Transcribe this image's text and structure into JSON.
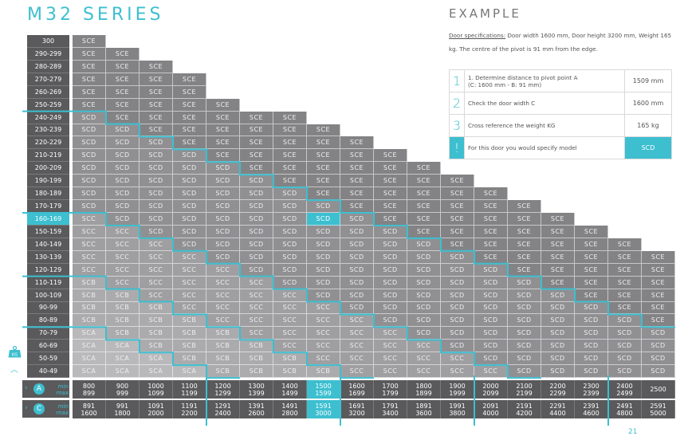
{
  "title": "M32 SERIES",
  "example": {
    "title": "EXAMPLE",
    "spec_label": "Door specifications:",
    "spec_text": " Door width 1600 mm, Door height 3200 mm, Weight 165 kg. The centre of the pivot is 91 mm from the edge.",
    "steps": [
      {
        "num": "1",
        "text": "1. Determine distance to pivot point A",
        "subtext": "(C: 1600 mm - B: 91 mm)",
        "value": "1509 mm"
      },
      {
        "num": "2",
        "text": "Check the door width C",
        "subtext": "",
        "value": "1600 mm"
      },
      {
        "num": "3",
        "text": "Cross reference the weight KG",
        "subtext": "",
        "value": "165 kg"
      },
      {
        "num": "!",
        "text": "For this door you would specify model",
        "subtext": "",
        "value": "SCD"
      }
    ]
  },
  "weight_unit": "KG",
  "weights": [
    "300",
    "290-299",
    "280-289",
    "270-279",
    "260-269",
    "250-259",
    "240-249",
    "230-239",
    "220-229",
    "210-219",
    "200-209",
    "190-199",
    "180-189",
    "170-179",
    "160-169",
    "150-159",
    "140-149",
    "130-139",
    "120-129",
    "110-119",
    "100-109",
    "90-99",
    "80-89",
    "70-79",
    "60-69",
    "50-59",
    "40-49"
  ],
  "highlight_weight_index": 14,
  "highlight_col_index": 7,
  "labels": {
    "min": "min",
    "max": "max",
    "a": "A",
    "c": "C"
  },
  "a_ranges": [
    {
      "min": "800",
      "max": "899"
    },
    {
      "min": "900",
      "max": "999"
    },
    {
      "min": "1000",
      "max": "1099"
    },
    {
      "min": "1100",
      "max": "1199"
    },
    {
      "min": "1200",
      "max": "1299"
    },
    {
      "min": "1300",
      "max": "1399"
    },
    {
      "min": "1400",
      "max": "1499"
    },
    {
      "min": "1500",
      "max": "1599"
    },
    {
      "min": "1600",
      "max": "1699"
    },
    {
      "min": "1700",
      "max": "1799"
    },
    {
      "min": "1800",
      "max": "1899"
    },
    {
      "min": "1900",
      "max": "1999"
    },
    {
      "min": "2000",
      "max": "2099"
    },
    {
      "min": "2100",
      "max": "2199"
    },
    {
      "min": "2200",
      "max": "2299"
    },
    {
      "min": "2300",
      "max": "2399"
    },
    {
      "min": "2400",
      "max": "2499"
    },
    {
      "min": "2500",
      "max": ""
    }
  ],
  "c_ranges": [
    {
      "min": "891",
      "max": "1600"
    },
    {
      "min": "991",
      "max": "1800"
    },
    {
      "min": "1091",
      "max": "2000"
    },
    {
      "min": "1191",
      "max": "2200"
    },
    {
      "min": "1291",
      "max": "2400"
    },
    {
      "min": "1391",
      "max": "2600"
    },
    {
      "min": "1491",
      "max": "2800"
    },
    {
      "min": "1591",
      "max": "3000"
    },
    {
      "min": "1691",
      "max": "3200"
    },
    {
      "min": "1791",
      "max": "3400"
    },
    {
      "min": "1891",
      "max": "3600"
    },
    {
      "min": "1991",
      "max": "3800"
    },
    {
      "min": "2091",
      "max": "4000"
    },
    {
      "min": "2191",
      "max": "4200"
    },
    {
      "min": "2291",
      "max": "4400"
    },
    {
      "min": "2391",
      "max": "4600"
    },
    {
      "min": "2491",
      "max": "4800"
    },
    {
      "min": "2591",
      "max": "5000"
    }
  ],
  "grid": [
    [
      "SCE"
    ],
    [
      "SCE",
      "SCE"
    ],
    [
      "SCE",
      "SCE",
      "SCE"
    ],
    [
      "SCE",
      "SCE",
      "SCE",
      "SCE"
    ],
    [
      "SCE",
      "SCE",
      "SCE",
      "SCE"
    ],
    [
      "SCE",
      "SCE",
      "SCE",
      "SCE",
      "SCE"
    ],
    [
      "SCD",
      "SCE",
      "SCE",
      "SCE",
      "SCE",
      "SCE",
      "SCE"
    ],
    [
      "SCD",
      "SCD",
      "SCE",
      "SCE",
      "SCE",
      "SCE",
      "SCE",
      "SCE"
    ],
    [
      "SCD",
      "SCD",
      "SCD",
      "SCE",
      "SCE",
      "SCE",
      "SCE",
      "SCE",
      "SCE"
    ],
    [
      "SCD",
      "SCD",
      "SCD",
      "SCD",
      "SCE",
      "SCE",
      "SCE",
      "SCE",
      "SCE",
      "SCE"
    ],
    [
      "SCD",
      "SCD",
      "SCD",
      "SCD",
      "SCD",
      "SCE",
      "SCE",
      "SCE",
      "SCE",
      "SCE",
      "SCE"
    ],
    [
      "SCD",
      "SCD",
      "SCD",
      "SCD",
      "SCD",
      "SCD",
      "SCE",
      "SCE",
      "SCE",
      "SCE",
      "SCE",
      "SCE"
    ],
    [
      "SCD",
      "SCD",
      "SCD",
      "SCD",
      "SCD",
      "SCD",
      "SCD",
      "SCE",
      "SCE",
      "SCE",
      "SCE",
      "SCE",
      "SCE"
    ],
    [
      "SCD",
      "SCD",
      "SCD",
      "SCD",
      "SCD",
      "SCD",
      "SCD",
      "SCD",
      "SCE",
      "SCE",
      "SCE",
      "SCE",
      "SCE",
      "SCE"
    ],
    [
      "SCC",
      "SCD",
      "SCD",
      "SCD",
      "SCD",
      "SCD",
      "SCD",
      "SCD",
      "SCD",
      "SCE",
      "SCE",
      "SCE",
      "SCE",
      "SCE",
      "SCE"
    ],
    [
      "SCC",
      "SCC",
      "SCD",
      "SCD",
      "SCD",
      "SCD",
      "SCD",
      "SCD",
      "SCD",
      "SCD",
      "SCE",
      "SCE",
      "SCE",
      "SCE",
      "SCE",
      "SCE"
    ],
    [
      "SCC",
      "SCC",
      "SCC",
      "SCD",
      "SCD",
      "SCD",
      "SCD",
      "SCD",
      "SCD",
      "SCD",
      "SCD",
      "SCE",
      "SCE",
      "SCE",
      "SCE",
      "SCE",
      "SCE"
    ],
    [
      "SCC",
      "SCC",
      "SCC",
      "SCC",
      "SCD",
      "SCD",
      "SCD",
      "SCD",
      "SCD",
      "SCD",
      "SCD",
      "SCD",
      "SCE",
      "SCE",
      "SCE",
      "SCE",
      "SCE",
      "SCE"
    ],
    [
      "SCC",
      "SCC",
      "SCC",
      "SCC",
      "SCC",
      "SCD",
      "SCD",
      "SCD",
      "SCD",
      "SCD",
      "SCD",
      "SCD",
      "SCD",
      "SCE",
      "SCE",
      "SCE",
      "SCE",
      "SCE"
    ],
    [
      "SCB",
      "SCC",
      "SCC",
      "SCC",
      "SCC",
      "SCC",
      "SCD",
      "SCD",
      "SCD",
      "SCD",
      "SCD",
      "SCD",
      "SCD",
      "SCD",
      "SCE",
      "SCE",
      "SCE",
      "SCE"
    ],
    [
      "SCB",
      "SCB",
      "SCC",
      "SCC",
      "SCC",
      "SCC",
      "SCC",
      "SCD",
      "SCD",
      "SCD",
      "SCD",
      "SCD",
      "SCD",
      "SCD",
      "SCD",
      "SCE",
      "SCE",
      "SCE"
    ],
    [
      "SCB",
      "SCB",
      "SCB",
      "SCC",
      "SCC",
      "SCC",
      "SCC",
      "SCC",
      "SCD",
      "SCD",
      "SCD",
      "SCD",
      "SCD",
      "SCD",
      "SCD",
      "SCD",
      "SCE",
      "SCE"
    ],
    [
      "SCB",
      "SCB",
      "SCB",
      "SCB",
      "SCC",
      "SCC",
      "SCC",
      "SCC",
      "SCC",
      "SCD",
      "SCD",
      "SCD",
      "SCD",
      "SCD",
      "SCD",
      "SCD",
      "SCD",
      "SCE"
    ],
    [
      "SCA",
      "SCB",
      "SCB",
      "SCB",
      "SCB",
      "SCC",
      "SCC",
      "SCC",
      "SCC",
      "SCC",
      "SCD",
      "SCD",
      "SCD",
      "SCD",
      "SCD",
      "SCD",
      "SCD",
      "SCD"
    ],
    [
      "SCA",
      "SCA",
      "SCB",
      "SCB",
      "SCB",
      "SCB",
      "SCC",
      "SCC",
      "SCC",
      "SCC",
      "SCC",
      "SCD",
      "SCD",
      "SCD",
      "SCD",
      "SCD",
      "SCD",
      "SCD"
    ],
    [
      "SCA",
      "SCA",
      "SCA",
      "SCB",
      "SCB",
      "SCB",
      "SCB",
      "SCC",
      "SCC",
      "SCC",
      "SCC",
      "SCC",
      "SCD",
      "SCD",
      "SCD",
      "SCD",
      "SCD",
      "SCD"
    ],
    [
      "SCA",
      "SCA",
      "SCA",
      "SCA",
      "SCB",
      "SCB",
      "SCB",
      "SCB",
      "SCC",
      "SCC",
      "SCC",
      "SCC",
      "SCC",
      "SCD",
      "SCD",
      "SCD",
      "SCD",
      "SCD"
    ]
  ],
  "page_number": "21",
  "colors": {
    "accent": "#3dbfd0",
    "header": "#5a5a5c"
  }
}
